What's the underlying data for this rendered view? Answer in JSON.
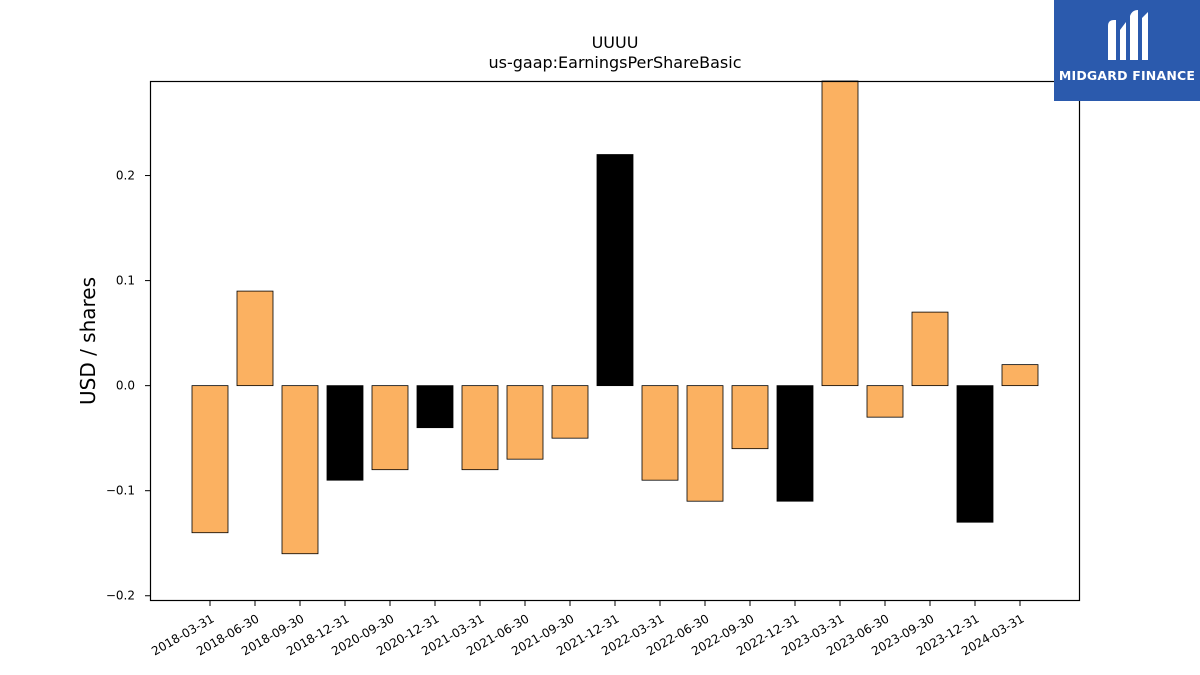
{
  "chart_data": {
    "type": "bar",
    "title": "UUUU",
    "subtitle": "us-gaap:EarningsPerShareBasic",
    "ylabel": "USD / shares",
    "xlabel": "",
    "ylim": [
      -0.205,
      0.29
    ],
    "yticks": [
      -0.2,
      -0.1,
      0.0,
      0.1,
      0.2
    ],
    "ytick_labels": [
      "−0.2",
      "−0.1",
      "0.0",
      "0.1",
      "0.2"
    ],
    "grid": false,
    "categories": [
      "2018-03-31",
      "2018-06-30",
      "2018-09-30",
      "2018-12-31",
      "2020-09-30",
      "2020-12-31",
      "2021-03-31",
      "2021-06-30",
      "2021-09-30",
      "2021-12-31",
      "2022-03-31",
      "2022-06-30",
      "2022-09-30",
      "2022-12-31",
      "2023-03-31",
      "2023-06-30",
      "2023-09-30",
      "2023-12-31",
      "2024-03-31"
    ],
    "values": [
      -0.14,
      0.09,
      -0.16,
      -0.09,
      -0.08,
      -0.04,
      -0.08,
      -0.07,
      -0.05,
      0.22,
      -0.09,
      -0.11,
      -0.06,
      -0.11,
      0.3,
      -0.03,
      0.07,
      -0.13,
      0.02
    ],
    "bar_colors": [
      "#fbb161",
      "#fbb161",
      "#fbb161",
      "#000000",
      "#fbb161",
      "#000000",
      "#fbb161",
      "#fbb161",
      "#fbb161",
      "#000000",
      "#fbb161",
      "#fbb161",
      "#fbb161",
      "#000000",
      "#fbb161",
      "#fbb161",
      "#fbb161",
      "#000000",
      "#fbb161"
    ]
  },
  "logo": {
    "text": "MIDGARD FINANCE",
    "background": "#2b5aad"
  }
}
